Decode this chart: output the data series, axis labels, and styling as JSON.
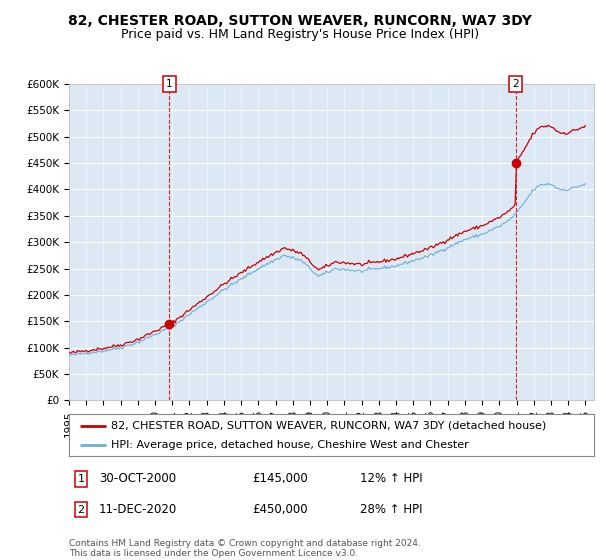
{
  "title": "82, CHESTER ROAD, SUTTON WEAVER, RUNCORN, WA7 3DY",
  "subtitle": "Price paid vs. HM Land Registry's House Price Index (HPI)",
  "ylim": [
    0,
    600000
  ],
  "yticks": [
    0,
    50000,
    100000,
    150000,
    200000,
    250000,
    300000,
    350000,
    400000,
    450000,
    500000,
    550000,
    600000
  ],
  "ytick_labels": [
    "£0",
    "£50K",
    "£100K",
    "£150K",
    "£200K",
    "£250K",
    "£300K",
    "£350K",
    "£400K",
    "£450K",
    "£500K",
    "£550K",
    "£600K"
  ],
  "hpi_color": "#6baed6",
  "price_color": "#cc0000",
  "sale1_date": 2000.83,
  "sale1_price": 145000,
  "sale1_label": "1",
  "sale2_date": 2020.94,
  "sale2_price": 450000,
  "sale2_label": "2",
  "vline_color": "#cc0000",
  "bg_color": "#dce9f5",
  "legend_line1": "82, CHESTER ROAD, SUTTON WEAVER, RUNCORN, WA7 3DY (detached house)",
  "legend_line2": "HPI: Average price, detached house, Cheshire West and Chester",
  "annotation1_date": "30-OCT-2000",
  "annotation1_price": "£145,000",
  "annotation1_hpi": "12% ↑ HPI",
  "annotation2_date": "11-DEC-2020",
  "annotation2_price": "£450,000",
  "annotation2_hpi": "28% ↑ HPI",
  "footer": "Contains HM Land Registry data © Crown copyright and database right 2024.\nThis data is licensed under the Open Government Licence v3.0.",
  "title_fontsize": 10,
  "subtitle_fontsize": 9,
  "tick_fontsize": 7.5,
  "legend_fontsize": 8,
  "annotation_fontsize": 8.5,
  "footer_fontsize": 6.5,
  "hpi_keypoints_t": [
    1995.0,
    1996.0,
    1997.0,
    1998.0,
    1999.0,
    2000.0,
    2001.0,
    2002.5,
    2004.0,
    2005.0,
    2006.0,
    2007.5,
    2008.5,
    2009.5,
    2010.5,
    2012.0,
    2013.0,
    2014.0,
    2015.0,
    2016.0,
    2017.0,
    2018.0,
    2019.0,
    2020.0,
    2020.5,
    2021.0,
    2022.0,
    2022.5,
    2023.0,
    2023.5,
    2024.0,
    2024.5,
    2025.0
  ],
  "hpi_keypoints_v": [
    85000,
    90000,
    94000,
    100000,
    110000,
    125000,
    140000,
    175000,
    210000,
    230000,
    250000,
    275000,
    265000,
    235000,
    250000,
    245000,
    250000,
    255000,
    265000,
    275000,
    290000,
    305000,
    315000,
    330000,
    340000,
    355000,
    400000,
    410000,
    410000,
    400000,
    400000,
    405000,
    410000
  ]
}
